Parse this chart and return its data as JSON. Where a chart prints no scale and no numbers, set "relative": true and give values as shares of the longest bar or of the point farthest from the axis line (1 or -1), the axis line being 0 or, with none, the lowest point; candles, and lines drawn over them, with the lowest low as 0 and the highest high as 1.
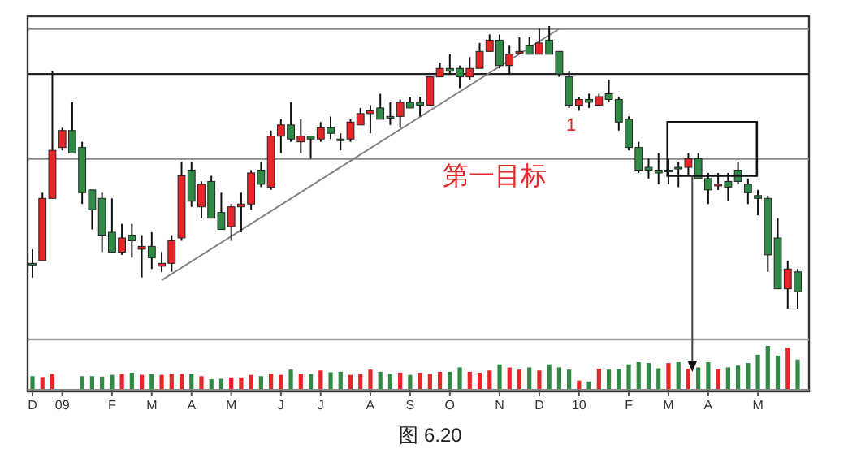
{
  "chart_data": [
    {
      "type": "candlestick",
      "relative": true,
      "tick_labels": false,
      "ohlc": [
        [
          0.16,
          0.21,
          0.11,
          0.16
        ],
        [
          0.17,
          0.41,
          0.17,
          0.39
        ],
        [
          0.39,
          0.84,
          0.39,
          0.56
        ],
        [
          0.57,
          0.64,
          0.56,
          0.63
        ],
        [
          0.63,
          0.73,
          0.55,
          0.55
        ],
        [
          0.57,
          0.59,
          0.37,
          0.41
        ],
        [
          0.42,
          0.42,
          0.28,
          0.35
        ],
        [
          0.39,
          0.41,
          0.2,
          0.26
        ],
        [
          0.27,
          0.39,
          0.2,
          0.2
        ],
        [
          0.2,
          0.3,
          0.19,
          0.25
        ],
        [
          0.26,
          0.3,
          0.18,
          0.24
        ],
        [
          0.21,
          0.26,
          0.11,
          0.22
        ],
        [
          0.22,
          0.27,
          0.14,
          0.18
        ],
        [
          0.15,
          0.2,
          0.13,
          0.16
        ],
        [
          0.16,
          0.26,
          0.13,
          0.24
        ],
        [
          0.25,
          0.52,
          0.24,
          0.47
        ],
        [
          0.49,
          0.52,
          0.36,
          0.38
        ],
        [
          0.36,
          0.45,
          0.32,
          0.44
        ],
        [
          0.45,
          0.47,
          0.32,
          0.32
        ],
        [
          0.34,
          0.41,
          0.28,
          0.28
        ],
        [
          0.29,
          0.37,
          0.24,
          0.36
        ],
        [
          0.36,
          0.41,
          0.27,
          0.37
        ],
        [
          0.37,
          0.49,
          0.35,
          0.48
        ],
        [
          0.49,
          0.52,
          0.43,
          0.44
        ],
        [
          0.43,
          0.63,
          0.42,
          0.61
        ],
        [
          0.61,
          0.67,
          0.55,
          0.65
        ],
        [
          0.65,
          0.73,
          0.59,
          0.6
        ],
        [
          0.59,
          0.67,
          0.55,
          0.61
        ],
        [
          0.61,
          0.61,
          0.53,
          0.6
        ],
        [
          0.6,
          0.66,
          0.59,
          0.64
        ],
        [
          0.64,
          0.68,
          0.6,
          0.62
        ],
        [
          0.6,
          0.62,
          0.56,
          0.6
        ],
        [
          0.6,
          0.67,
          0.59,
          0.66
        ],
        [
          0.65,
          0.71,
          0.65,
          0.69
        ],
        [
          0.69,
          0.72,
          0.62,
          0.7
        ],
        [
          0.71,
          0.76,
          0.67,
          0.67
        ],
        [
          0.68,
          0.73,
          0.65,
          0.68
        ],
        [
          0.68,
          0.74,
          0.64,
          0.73
        ],
        [
          0.73,
          0.75,
          0.71,
          0.71
        ],
        [
          0.73,
          0.75,
          0.68,
          0.72
        ],
        [
          0.72,
          0.82,
          0.72,
          0.82
        ],
        [
          0.82,
          0.87,
          0.82,
          0.85
        ],
        [
          0.85,
          0.9,
          0.83,
          0.84
        ],
        [
          0.85,
          0.86,
          0.78,
          0.82
        ],
        [
          0.82,
          0.89,
          0.81,
          0.85
        ],
        [
          0.85,
          0.94,
          0.85,
          0.91
        ],
        [
          0.91,
          0.97,
          0.91,
          0.95
        ],
        [
          0.95,
          0.97,
          0.85,
          0.86
        ],
        [
          0.86,
          0.93,
          0.83,
          0.9
        ],
        [
          0.91,
          0.96,
          0.9,
          0.91
        ],
        [
          0.93,
          0.96,
          0.9,
          0.9
        ],
        [
          0.9,
          0.99,
          0.9,
          0.94
        ],
        [
          0.95,
          1.0,
          0.9,
          0.9
        ],
        [
          0.91,
          0.91,
          0.82,
          0.83
        ],
        [
          0.82,
          0.84,
          0.71,
          0.72
        ],
        [
          0.72,
          0.75,
          0.7,
          0.74
        ],
        [
          0.74,
          0.76,
          0.71,
          0.73
        ],
        [
          0.72,
          0.76,
          0.72,
          0.75
        ],
        [
          0.76,
          0.81,
          0.73,
          0.74
        ],
        [
          0.74,
          0.75,
          0.63,
          0.66
        ],
        [
          0.67,
          0.68,
          0.56,
          0.57
        ],
        [
          0.57,
          0.59,
          0.48,
          0.49
        ],
        [
          0.5,
          0.53,
          0.46,
          0.49
        ],
        [
          0.49,
          0.55,
          0.44,
          0.48
        ],
        [
          0.49,
          0.53,
          0.44,
          0.49
        ],
        [
          0.5,
          0.52,
          0.43,
          0.5
        ],
        [
          0.5,
          0.55,
          0.47,
          0.53
        ],
        [
          0.53,
          0.55,
          0.46,
          0.46
        ],
        [
          0.46,
          0.48,
          0.37,
          0.42
        ],
        [
          0.44,
          0.48,
          0.42,
          0.44
        ],
        [
          0.45,
          0.48,
          0.38,
          0.43
        ],
        [
          0.49,
          0.52,
          0.44,
          0.45
        ],
        [
          0.44,
          0.46,
          0.37,
          0.41
        ],
        [
          0.4,
          0.42,
          0.33,
          0.39
        ],
        [
          0.39,
          0.4,
          0.13,
          0.19
        ],
        [
          0.25,
          0.32,
          0.07,
          0.07
        ],
        [
          0.07,
          0.17,
          0,
          0.14
        ],
        [
          0.13,
          0.14,
          0,
          0.06
        ]
      ],
      "colors": [
        "#2f8a46",
        "#e8262a",
        "#e8262a",
        "#e8262a",
        "#2f8a46",
        "#2f8a46",
        "#2f8a46",
        "#2f8a46",
        "#2f8a46",
        "#e8262a",
        "#2f8a46",
        "#e8262a",
        "#2f8a46",
        "#e8262a",
        "#e8262a",
        "#e8262a",
        "#2f8a46",
        "#e8262a",
        "#2f8a46",
        "#2f8a46",
        "#e8262a",
        "#e8262a",
        "#e8262a",
        "#2f8a46",
        "#e8262a",
        "#e8262a",
        "#2f8a46",
        "#e8262a",
        "#2f8a46",
        "#e8262a",
        "#2f8a46",
        "#2f8a46",
        "#e8262a",
        "#e8262a",
        "#e8262a",
        "#2f8a46",
        "#2f8a46",
        "#e8262a",
        "#2f8a46",
        "#2f8a46",
        "#e8262a",
        "#e8262a",
        "#2f8a46",
        "#2f8a46",
        "#e8262a",
        "#e8262a",
        "#e8262a",
        "#2f8a46",
        "#e8262a",
        "#e8262a",
        "#2f8a46",
        "#e8262a",
        "#2f8a46",
        "#2f8a46",
        "#2f8a46",
        "#e8262a",
        "#2f8a46",
        "#e8262a",
        "#2f8a46",
        "#2f8a46",
        "#2f8a46",
        "#2f8a46",
        "#2f8a46",
        "#2f8a46",
        "#2f8a46",
        "#2f8a46",
        "#e8262a",
        "#2f8a46",
        "#2f8a46",
        "#e8262a",
        "#2f8a46",
        "#2f8a46",
        "#2f8a46",
        "#2f8a46",
        "#2f8a46",
        "#2f8a46",
        "#e8262a",
        "#2f8a46"
      ],
      "series": [
        {
          "type": "line",
          "color": "#808080",
          "values": [
            null,
            null,
            null,
            null,
            null,
            null,
            null,
            null,
            null,
            null,
            null,
            null,
            null,
            0.1,
            null,
            null,
            null,
            null,
            null,
            null,
            null,
            null,
            null,
            null,
            null,
            null,
            null,
            null,
            null,
            null,
            null,
            null,
            null,
            null,
            null,
            null,
            null,
            null,
            null,
            null,
            null,
            null,
            null,
            null,
            null,
            null,
            null,
            null,
            null,
            null,
            null,
            null,
            null,
            0.99,
            null,
            null,
            null,
            null,
            null,
            null,
            null,
            null,
            null,
            null,
            null,
            null,
            null,
            null,
            null,
            null,
            null,
            null,
            null,
            null,
            null,
            null,
            null,
            null
          ]
        }
      ],
      "ref_lines": [
        {
          "axis": "y",
          "value": 0.99,
          "color": "#888888"
        },
        {
          "axis": "y",
          "value": 0.83,
          "color": "#222222"
        },
        {
          "axis": "y",
          "value": 0.53,
          "color": "#888888"
        }
      ],
      "annotations": [
        "1",
        "第一目标"
      ]
    },
    {
      "type": "bar",
      "relative": true,
      "tick_labels": "x",
      "categories": [
        "D",
        null,
        null,
        "09",
        null,
        null,
        null,
        null,
        "F",
        null,
        null,
        null,
        "M",
        null,
        null,
        null,
        "A",
        null,
        null,
        null,
        "M",
        null,
        null,
        null,
        null,
        "J",
        null,
        null,
        null,
        "J",
        null,
        null,
        null,
        null,
        "A",
        null,
        null,
        null,
        "S",
        null,
        null,
        null,
        "O",
        null,
        null,
        null,
        null,
        "N",
        null,
        null,
        null,
        "D",
        null,
        null,
        null,
        "10",
        null,
        null,
        null,
        null,
        "F",
        null,
        null,
        null,
        "M",
        null,
        null,
        null,
        "A",
        null,
        null,
        null,
        null,
        "M",
        null,
        null,
        null,
        null
      ],
      "values": [
        0.31,
        0.29,
        0.36,
        null,
        null,
        0.31,
        0.31,
        0.3,
        0.34,
        0.36,
        0.39,
        0.34,
        0.36,
        0.34,
        0.36,
        0.36,
        0.36,
        0.31,
        0.24,
        0.25,
        0.28,
        0.28,
        0.34,
        0.31,
        0.36,
        0.34,
        0.46,
        0.36,
        0.36,
        0.44,
        0.4,
        0.41,
        0.34,
        0.36,
        0.46,
        0.41,
        0.36,
        0.39,
        0.34,
        0.39,
        0.36,
        0.41,
        0.41,
        0.51,
        0.41,
        0.39,
        0.44,
        0.58,
        0.51,
        0.46,
        0.51,
        0.44,
        0.58,
        0.51,
        0.46,
        0.21,
        0.19,
        0.48,
        0.46,
        0.48,
        0.58,
        0.63,
        0.61,
        0.49,
        0.61,
        0.63,
        0.48,
        0.51,
        0.63,
        0.48,
        0.51,
        0.55,
        0.61,
        0.8,
        1,
        0.78,
        0.96,
        0.69
      ],
      "colors": [
        "#2f8a46",
        "#e8262a",
        "#e8262a",
        null,
        null,
        "#2f8a46",
        "#2f8a46",
        "#2f8a46",
        "#2f8a46",
        "#e8262a",
        "#2f8a46",
        "#e8262a",
        "#2f8a46",
        "#e8262a",
        "#e8262a",
        "#e8262a",
        "#2f8a46",
        "#e8262a",
        "#2f8a46",
        "#2f8a46",
        "#e8262a",
        "#e8262a",
        "#e8262a",
        "#2f8a46",
        "#e8262a",
        "#e8262a",
        "#2f8a46",
        "#e8262a",
        "#2f8a46",
        "#e8262a",
        "#2f8a46",
        "#2f8a46",
        "#e8262a",
        "#e8262a",
        "#e8262a",
        "#2f8a46",
        "#2f8a46",
        "#e8262a",
        "#2f8a46",
        "#e8262a",
        "#e8262a",
        "#e8262a",
        "#2f8a46",
        "#2f8a46",
        "#e8262a",
        "#e8262a",
        "#e8262a",
        "#2f8a46",
        "#e8262a",
        "#e8262a",
        "#2f8a46",
        "#e8262a",
        "#2f8a46",
        "#2f8a46",
        "#2f8a46",
        "#e8262a",
        "#2f8a46",
        "#e8262a",
        "#2f8a46",
        "#2f8a46",
        "#2f8a46",
        "#2f8a46",
        "#2f8a46",
        "#2f8a46",
        "#e8262a",
        "#2f8a46",
        "#e8262a",
        "#2f8a46",
        "#2f8a46",
        "#e8262a",
        "#2f8a46",
        "#2f8a46",
        "#2f8a46",
        "#2f8a46",
        "#2f8a46",
        "#2f8a46",
        "#e8262a",
        "#2f8a46"
      ],
      "annotations": [
        "图 6.20"
      ]
    }
  ]
}
